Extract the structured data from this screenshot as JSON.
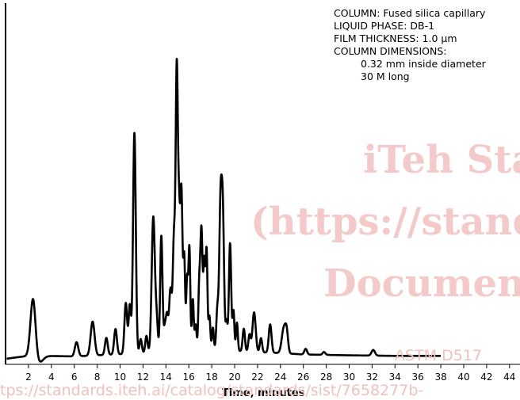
{
  "watermark": {
    "line1": "iTeh Sta",
    "line2": "(https://stand",
    "line3": "Documen",
    "line4": "ASTM D517",
    "line5": "tps://standards.iteh.ai/catalog/standards/sist/7658277b-"
  },
  "column_info": {
    "column": "COLUMN: Fused silica capillary",
    "liquid_phase": "LIQUID PHASE: DB-1",
    "film_thickness": "FILM THICKNESS: 1.0 μm",
    "dimensions_header": "COLUMN DIMENSIONS:",
    "diameter": "0.32 mm inside diameter",
    "length": "30 M long"
  },
  "chart_data": {
    "type": "line",
    "title": "",
    "xlabel": "Time, minutes",
    "ylabel": "",
    "xlim": [
      0,
      45
    ],
    "ylim": [
      0,
      100
    ],
    "xticks": [
      2,
      4,
      6,
      8,
      10,
      12,
      14,
      16,
      18,
      20,
      22,
      24,
      26,
      28,
      30,
      32,
      34,
      36,
      38,
      40,
      42,
      44
    ],
    "grid": false,
    "baseline": [
      [
        0.1,
        2.0
      ],
      [
        1.0,
        2.5
      ],
      [
        2.0,
        3.0
      ],
      [
        3.5,
        3.0
      ],
      [
        6.0,
        2.8
      ],
      [
        8.0,
        3.2
      ],
      [
        10.0,
        3.6
      ],
      [
        12.0,
        4.0
      ],
      [
        14.0,
        4.5
      ],
      [
        16.0,
        5.0
      ],
      [
        18.0,
        5.0
      ],
      [
        20.0,
        4.8
      ],
      [
        22.0,
        4.3
      ],
      [
        24.0,
        4.0
      ],
      [
        26.0,
        3.5
      ],
      [
        30.0,
        3.2
      ],
      [
        34.0,
        3.0
      ],
      [
        38.0,
        3.0
      ]
    ],
    "dip": [
      2.9,
      -2.5,
      0.35
    ],
    "peaks": [
      [
        2.4,
        21,
        0.22
      ],
      [
        6.2,
        5,
        0.15
      ],
      [
        7.6,
        12,
        0.17
      ],
      [
        8.8,
        6,
        0.12
      ],
      [
        9.6,
        9,
        0.12
      ],
      [
        10.5,
        18,
        0.12
      ],
      [
        10.85,
        17,
        0.1
      ],
      [
        11.25,
        78,
        0.12
      ],
      [
        11.8,
        5,
        0.1
      ],
      [
        12.3,
        6,
        0.1
      ],
      [
        12.9,
        48,
        0.14
      ],
      [
        13.2,
        10,
        0.1
      ],
      [
        13.6,
        41,
        0.1
      ],
      [
        13.9,
        8,
        0.1
      ],
      [
        14.1,
        12,
        0.1
      ],
      [
        14.4,
        22,
        0.12
      ],
      [
        14.7,
        38,
        0.1
      ],
      [
        14.95,
        100,
        0.1
      ],
      [
        15.15,
        37,
        0.08
      ],
      [
        15.35,
        57,
        0.1
      ],
      [
        15.6,
        32,
        0.08
      ],
      [
        15.85,
        25,
        0.08
      ],
      [
        16.05,
        36,
        0.08
      ],
      [
        16.35,
        18,
        0.08
      ],
      [
        16.6,
        9,
        0.08
      ],
      [
        16.9,
        20,
        0.08
      ],
      [
        17.1,
        43,
        0.1
      ],
      [
        17.35,
        30,
        0.08
      ],
      [
        17.55,
        35,
        0.08
      ],
      [
        17.8,
        12,
        0.08
      ],
      [
        18.1,
        8,
        0.08
      ],
      [
        18.5,
        15,
        0.1
      ],
      [
        18.75,
        42,
        0.1
      ],
      [
        18.95,
        52,
        0.12
      ],
      [
        19.3,
        10,
        0.08
      ],
      [
        19.6,
        38,
        0.1
      ],
      [
        19.9,
        14,
        0.08
      ],
      [
        20.2,
        10,
        0.08
      ],
      [
        20.8,
        8,
        0.1
      ],
      [
        21.3,
        6,
        0.1
      ],
      [
        21.7,
        14,
        0.14
      ],
      [
        22.3,
        5,
        0.1
      ],
      [
        23.1,
        10,
        0.12
      ],
      [
        24.3,
        9,
        0.18
      ],
      [
        24.55,
        6,
        0.12
      ],
      [
        26.2,
        2,
        0.12
      ],
      [
        27.8,
        1,
        0.12
      ],
      [
        32.1,
        2,
        0.15
      ]
    ]
  }
}
